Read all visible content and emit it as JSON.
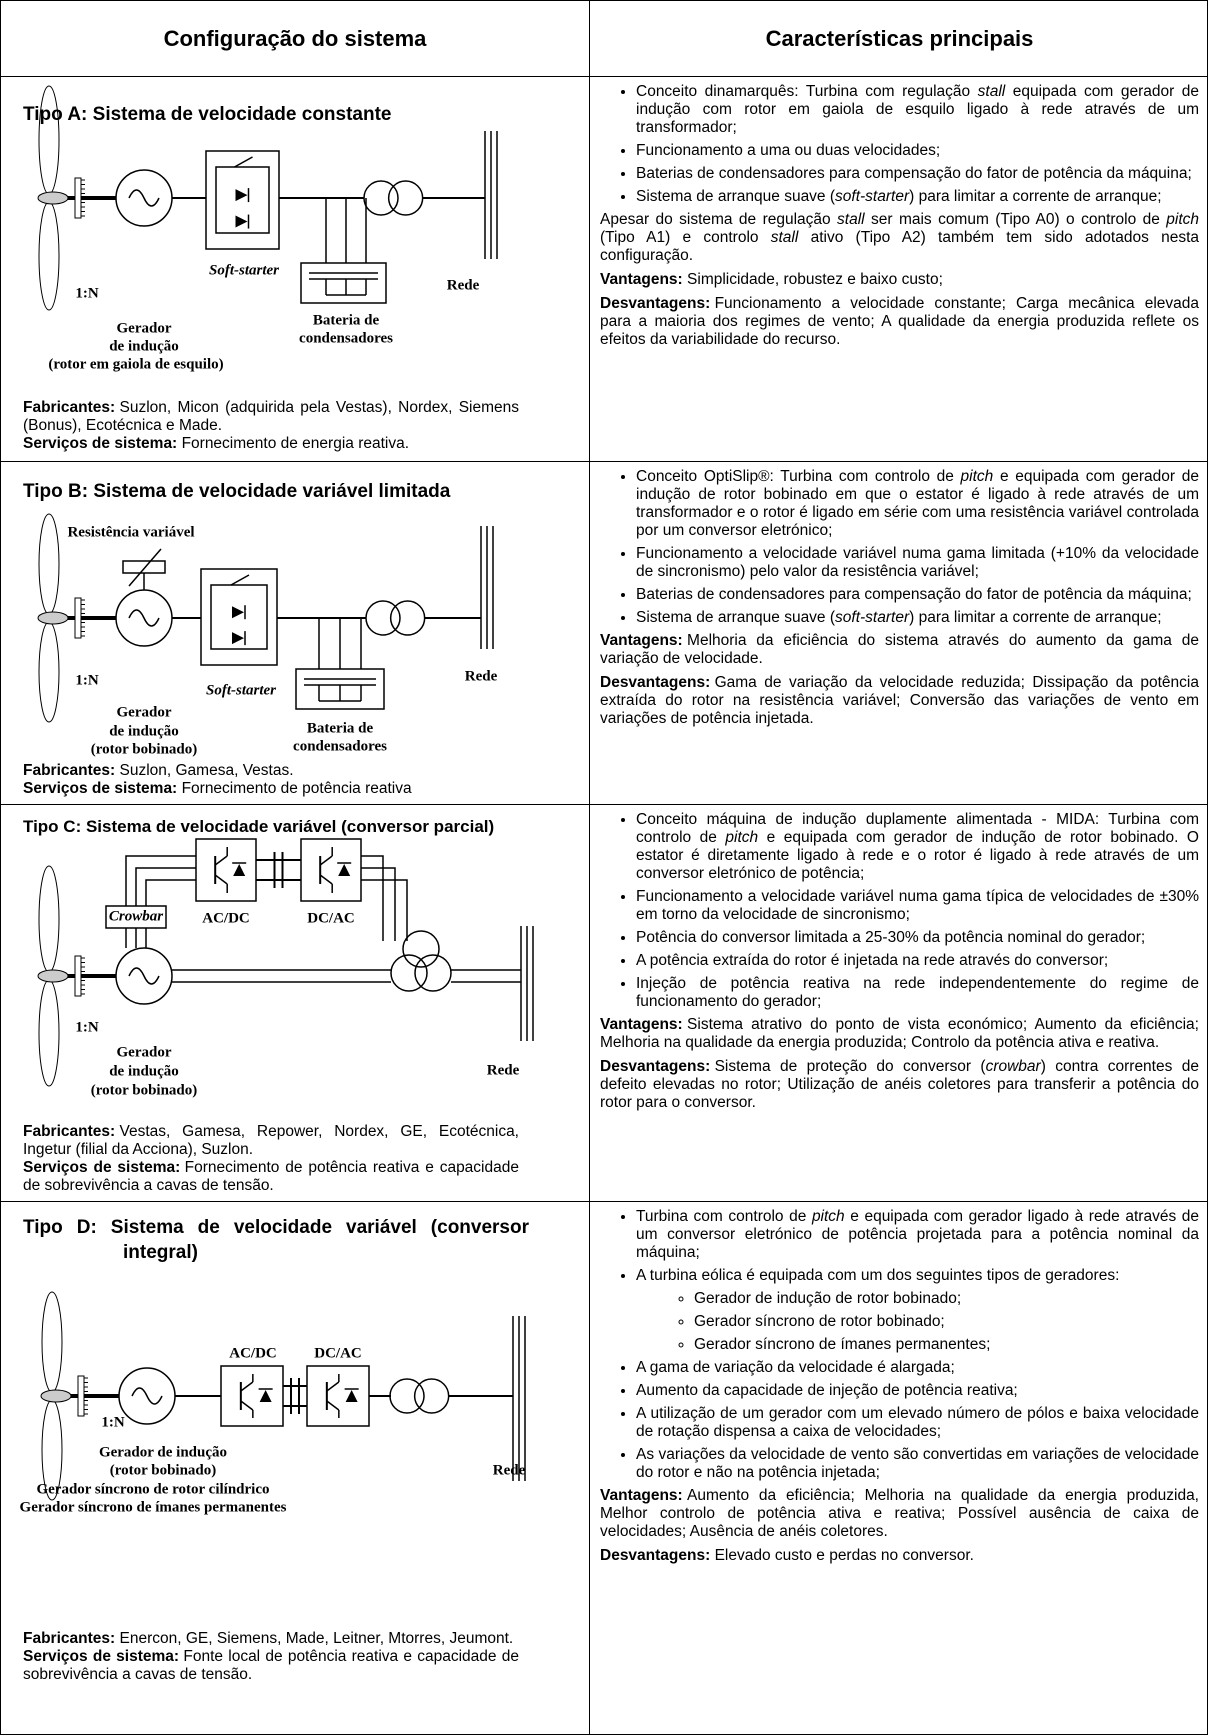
{
  "header": {
    "col1": "Configuração do sistema",
    "col2": "Características principais"
  },
  "rows": [
    {
      "title": "Tipo A: Sistema de velocidade constante",
      "diagram": [
        "1:N",
        "Gerador",
        "de indução",
        "(rotor em gaiola de esquilo)",
        "Soft-starter",
        "Bateria de",
        "condensadores",
        "Rede"
      ],
      "manufacturers": {
        "label": "Fabricantes:",
        "text": "Suzlon, Micon (adquirida pela Vestas), Nordex, Siemens (Bonus), Ecotécnica e Made."
      },
      "services": {
        "label": "Serviços de sistema:",
        "text": "Fornecimento de energia reativa."
      },
      "bullets": [
        {
          "text": [
            "Conceito dinamarquês: Turbina com regulação ",
            "stall",
            " equipada com gerador de indução com rotor em gaiola de esquilo ligado à rede através de um transformador;"
          ]
        },
        {
          "text": [
            "Funcionamento a uma ou duas velocidades;"
          ]
        },
        {
          "text": [
            "Baterias de condensadores para compensação do fator de potência da máquina;"
          ]
        },
        {
          "text": [
            "Sistema de arranque suave (",
            "soft-starter",
            ") para limitar a corrente de arranque;"
          ]
        }
      ],
      "notes": [
        {
          "text": [
            "Apesar do sistema de regulação ",
            "stall",
            " ser mais comum (Tipo A0) o controlo de ",
            "pitch",
            " (Tipo A1) e controlo ",
            "stall",
            " ativo (Tipo A2) também tem sido adotados nesta configuração."
          ]
        },
        {
          "label": "Vantagens:",
          "text": [
            "Simplicidade, robustez e baixo custo;"
          ]
        },
        {
          "label": "Desvantagens:",
          "text": [
            "Funcionamento a velocidade constante; Carga mecânica elevada para a maioria dos regimes de vento; A qualidade da energia produzida reflete os efeitos da variabilidade do recurso."
          ]
        }
      ]
    },
    {
      "title": "Tipo B: Sistema de velocidade variável limitada",
      "diagram": [
        "Resistência variável",
        "1:N",
        "Gerador",
        "de indução",
        "(rotor bobinado)",
        "Soft-starter",
        "Bateria de",
        "condensadores",
        "Rede"
      ],
      "manufacturers": {
        "label": "Fabricantes:",
        "text": "Suzlon, Gamesa, Vestas."
      },
      "services": {
        "label": "Serviços de sistema:",
        "text": "Fornecimento de potência reativa"
      },
      "bullets": [
        {
          "text": [
            "Conceito OptiSlip®: Turbina com controlo de ",
            "pitch",
            " e equipada com gerador de indução de rotor bobinado em que o estator é ligado à rede através de um transformador e o rotor é ligado em série com uma resistência variável controlada por um conversor eletrónico;"
          ]
        },
        {
          "text": [
            "Funcionamento a velocidade variável numa gama limitada (+10% da velocidade de sincronismo) pelo valor da resistência variável;"
          ]
        },
        {
          "text": [
            "Baterias de condensadores para compensação do fator de potência da máquina;"
          ]
        },
        {
          "text": [
            "Sistema de arranque suave (",
            "soft-starter",
            ") para limitar a corrente de arranque;"
          ]
        }
      ],
      "notes": [
        {
          "label": "Vantagens:",
          "text": [
            "Melhoria da eficiência do sistema através do aumento da gama de variação de velocidade."
          ]
        },
        {
          "label": "Desvantagens:",
          "text": [
            "Gama de variação da velocidade reduzida; Dissipação da potência extraída do rotor na resistência variável; Conversão das variações de vento em variações de potência injetada."
          ]
        }
      ]
    },
    {
      "title": "Tipo C: Sistema de velocidade variável (conversor parcial)",
      "diagram": [
        "Crowbar",
        "AC/DC",
        "DC/AC",
        "1:N",
        "Gerador",
        "de indução",
        "(rotor bobinado)",
        "Rede"
      ],
      "manufacturers": {
        "label": "Fabricantes:",
        "text": "Vestas, Gamesa, Repower, Nordex, GE, Ecotécnica, Ingetur (filial da Acciona), Suzlon."
      },
      "services": {
        "label": "Serviços de sistema:",
        "text": "Fornecimento de potência reativa e capacidade de sobrevivência a cavas de tensão."
      },
      "bullets": [
        {
          "text": [
            "Conceito máquina de indução duplamente alimentada - MIDA: Turbina com controlo de ",
            "pitch",
            " e equipada com gerador de indução de rotor bobinado. O estator é diretamente ligado à rede e o rotor é ligado à rede através de um conversor eletrónico de potência;"
          ]
        },
        {
          "text": [
            "Funcionamento a velocidade variável numa gama típica de velocidades de ±30% em torno da velocidade de sincronismo;"
          ]
        },
        {
          "text": [
            "Potência do conversor limitada a 25-30% da potência nominal do gerador;"
          ]
        },
        {
          "text": [
            "A potência extraída do rotor é injetada na rede através do conversor;"
          ]
        },
        {
          "text": [
            "Injeção de potência reativa na rede independentemente do regime de funcionamento do gerador;"
          ]
        }
      ],
      "notes": [
        {
          "label": "Vantagens:",
          "text": [
            "Sistema atrativo do ponto de vista económico; Aumento da eficiência; Melhoria na qualidade da energia produzida; Controlo da potência ativa e reativa."
          ]
        },
        {
          "label": "Desvantagens:",
          "text": [
            "Sistema de proteção do conversor (",
            "crowbar",
            ") contra correntes de defeito elevadas no rotor; Utilização de anéis coletores para transferir a potência do rotor para o conversor."
          ]
        }
      ]
    },
    {
      "title": "Tipo D: Sistema de velocidade variável (conversor integral)",
      "diagram": [
        "AC/DC",
        "DC/AC",
        "1:N",
        "Gerador de indução",
        "(rotor bobinado)",
        "Gerador síncrono de rotor cilíndrico",
        "Gerador síncrono de ímanes permanentes",
        "Rede"
      ],
      "manufacturers": {
        "label": "Fabricantes:",
        "text": "Enercon, GE, Siemens, Made, Leitner, Mtorres, Jeumont."
      },
      "services": {
        "label": "Serviços de sistema:",
        "text": "Fonte local de potência reativa e capacidade de sobrevivência a cavas de tensão."
      },
      "bullets": [
        {
          "text": [
            "Turbina com controlo de ",
            "pitch",
            " e equipada com gerador ligado à rede através de um conversor eletrónico de potência projetada para a potência nominal da máquina;"
          ]
        },
        {
          "text": [
            "A turbina eólica é equipada com um dos seguintes tipos de geradores:"
          ],
          "sub": [
            [
              "Gerador de indução de rotor bobinado;"
            ],
            [
              "Gerador síncrono de rotor bobinado;"
            ],
            [
              "Gerador síncrono de ímanes permanentes;"
            ]
          ]
        },
        {
          "text": [
            "A gama de variação da velocidade é alargada;"
          ]
        },
        {
          "text": [
            "Aumento da capacidade de injeção de potência reativa;"
          ]
        },
        {
          "text": [
            "A utilização de um gerador com um elevado número de pólos e baixa velocidade de rotação dispensa a caixa de velocidades;"
          ]
        },
        {
          "text": [
            "As variações da velocidade de vento são convertidas em variações de velocidade do rotor e não na potência injetada;"
          ]
        }
      ],
      "notes": [
        {
          "label": "Vantagens:",
          "text": [
            "Aumento da eficiência; Melhoria na qualidade da energia produzida, Melhor controlo de potência ativa e reativa; Possível ausência de caixa de velocidades; Ausência de anéis coletores."
          ]
        },
        {
          "label": "Desvantagens:",
          "text": [
            "Elevado custo e perdas no conversor."
          ]
        }
      ]
    }
  ]
}
